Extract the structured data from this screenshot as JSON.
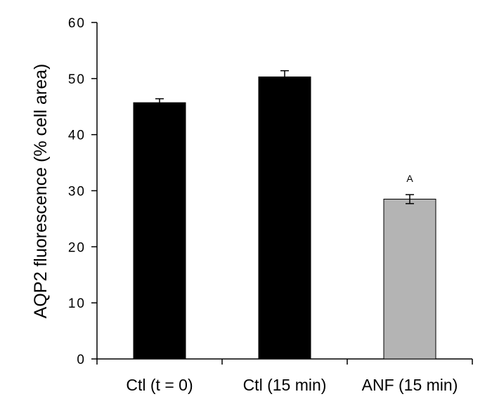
{
  "chart_data": {
    "type": "bar",
    "title": "",
    "xlabel": "",
    "ylabel": "AQP2 fluorescence (% cell area)",
    "ylim": [
      0,
      60
    ],
    "yticks": [
      0,
      10,
      20,
      30,
      40,
      50,
      60
    ],
    "grid": false,
    "categories": [
      "Ctl (t = 0)",
      "Ctl (15 min)",
      "ANF (15 min)"
    ],
    "values": [
      45.7,
      50.3,
      28.5
    ],
    "errors": [
      0.7,
      1.1,
      0.8
    ],
    "bar_colors": [
      "#000000",
      "#000000",
      "#b4b4b4"
    ],
    "annotations": [
      {
        "category": "ANF (15 min)",
        "text": "A"
      }
    ]
  }
}
